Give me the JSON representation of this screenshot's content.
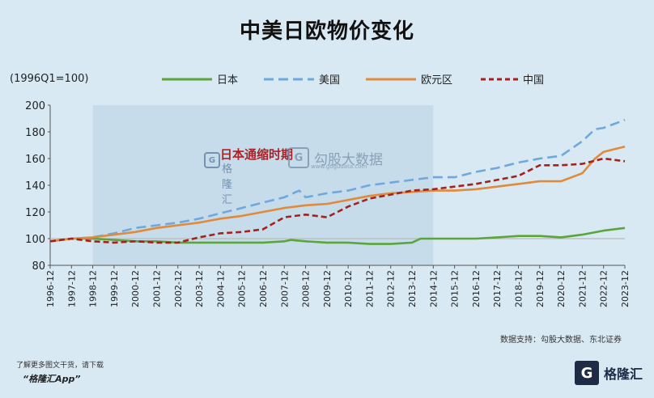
{
  "title": "中美日欧物价变化",
  "unit_label": "(1996Q1=100)",
  "annotation": "日本通缩时期",
  "watermark": {
    "text": "勾股大数据",
    "sub": "www.gogudata.com",
    "mark": "G"
  },
  "watermark_left": {
    "text": "格隆汇",
    "sub": "www.gelonghui.com"
  },
  "source": "数据支持：勾股大数据、东北证券",
  "footer_note": "了解更多图文干货，请下载",
  "footer_app": "“格隆汇App”",
  "brand": {
    "mark": "G",
    "text": "格隆汇"
  },
  "colors": {
    "japan": "#5aa63a",
    "us": "#6fa8dc",
    "euro": "#e08a3c",
    "china": "#a8201a",
    "shade": "#c3d9e8",
    "background": "#d8e9f3"
  },
  "chart_data": {
    "type": "line",
    "title": "中美日欧物价变化",
    "ylabel": "(1996Q1=100)",
    "ylim": [
      80,
      200
    ],
    "yticks": [
      80,
      100,
      120,
      140,
      160,
      180,
      200
    ],
    "xlim": [
      1996.9,
      2023.9
    ],
    "x_tick_labels": [
      "1996-12",
      "1997-12",
      "1998-12",
      "1999-12",
      "2000-12",
      "2001-12",
      "2002-12",
      "2003-12",
      "2004-12",
      "2005-12",
      "2006-12",
      "2007-12",
      "2008-12",
      "2009-12",
      "2010-12",
      "2011-12",
      "2012-12",
      "2013-12",
      "2014-12",
      "2015-12",
      "2016-12",
      "2017-12",
      "2018-12",
      "2019-12",
      "2020-12",
      "2021-12",
      "2022-12",
      "2023-12"
    ],
    "x_tick_values": [
      1996.9,
      1997.9,
      1998.9,
      1999.9,
      2000.9,
      2001.9,
      2002.9,
      2003.9,
      2004.9,
      2005.9,
      2006.9,
      2007.9,
      2008.9,
      2009.9,
      2010.9,
      2011.9,
      2012.9,
      2013.9,
      2014.9,
      2015.9,
      2016.9,
      2017.9,
      2018.9,
      2019.9,
      2020.9,
      2021.9,
      2022.9,
      2023.9
    ],
    "shaded_period": [
      1998.9,
      2014.9
    ],
    "reference_line": 100,
    "legend": "top",
    "series": [
      {
        "name": "日本",
        "style": "solid",
        "color": "#5aa63a",
        "x": [
          1996.9,
          1997.9,
          1998.9,
          1999.9,
          2000.9,
          2001.9,
          2002.9,
          2003.9,
          2004.9,
          2005.9,
          2006.9,
          2007.9,
          2008.2,
          2008.9,
          2009.9,
          2010.9,
          2011.9,
          2012.9,
          2013.9,
          2014.3,
          2014.9,
          2015.9,
          2016.9,
          2017.9,
          2018.9,
          2019.9,
          2020.9,
          2021.9,
          2022.9,
          2023.9
        ],
        "y": [
          98,
          100,
          100,
          99,
          98,
          98,
          97,
          97,
          97,
          97,
          97,
          98,
          99,
          98,
          97,
          97,
          96,
          96,
          97,
          100,
          100,
          100,
          100,
          101,
          102,
          102,
          101,
          103,
          106,
          108
        ]
      },
      {
        "name": "美国",
        "style": "dashed",
        "color": "#6fa8dc",
        "x": [
          1996.9,
          1997.9,
          1998.9,
          1999.9,
          2000.9,
          2001.9,
          2002.9,
          2003.9,
          2004.9,
          2005.9,
          2006.9,
          2007.9,
          2008.6,
          2008.9,
          2009.9,
          2010.9,
          2011.9,
          2012.9,
          2013.9,
          2014.9,
          2015.9,
          2016.9,
          2017.9,
          2018.9,
          2019.9,
          2020.9,
          2021.9,
          2022.5,
          2022.9,
          2023.9
        ],
        "y": [
          98,
          100,
          101,
          104,
          108,
          110,
          112,
          115,
          119,
          123,
          127,
          131,
          136,
          131,
          134,
          136,
          140,
          142,
          144,
          146,
          146,
          150,
          153,
          157,
          160,
          162,
          173,
          182,
          183,
          189
        ]
      },
      {
        "name": "欧元区",
        "style": "solid",
        "color": "#e08a3c",
        "x": [
          1996.9,
          1997.9,
          1998.9,
          1999.9,
          2000.9,
          2001.9,
          2002.9,
          2003.9,
          2004.9,
          2005.9,
          2006.9,
          2007.9,
          2008.9,
          2009.9,
          2010.9,
          2011.9,
          2012.9,
          2013.9,
          2014.9,
          2015.9,
          2016.9,
          2017.9,
          2018.9,
          2019.9,
          2020.9,
          2021.9,
          2022.5,
          2022.9,
          2023.9
        ],
        "y": [
          98,
          100,
          101,
          103,
          105,
          108,
          110,
          112,
          115,
          117,
          120,
          123,
          125,
          126,
          129,
          132,
          134,
          135,
          136,
          136,
          137,
          139,
          141,
          143,
          143,
          149,
          160,
          165,
          169
        ]
      },
      {
        "name": "中国",
        "style": "dashed",
        "color": "#a8201a",
        "x": [
          1996.9,
          1997.9,
          1998.9,
          1999.9,
          2000.9,
          2001.9,
          2002.9,
          2003.9,
          2004.9,
          2005.9,
          2006.9,
          2007.9,
          2008.9,
          2009.9,
          2010.9,
          2011.9,
          2012.9,
          2013.9,
          2014.9,
          2015.9,
          2016.9,
          2017.9,
          2018.9,
          2019.9,
          2020.9,
          2021.9,
          2022.9,
          2023.9
        ],
        "y": [
          98,
          100,
          98,
          97,
          98,
          97,
          97,
          101,
          104,
          105,
          107,
          116,
          118,
          116,
          124,
          130,
          133,
          136,
          137,
          139,
          141,
          144,
          147,
          155,
          155,
          156,
          160,
          158
        ]
      }
    ]
  }
}
